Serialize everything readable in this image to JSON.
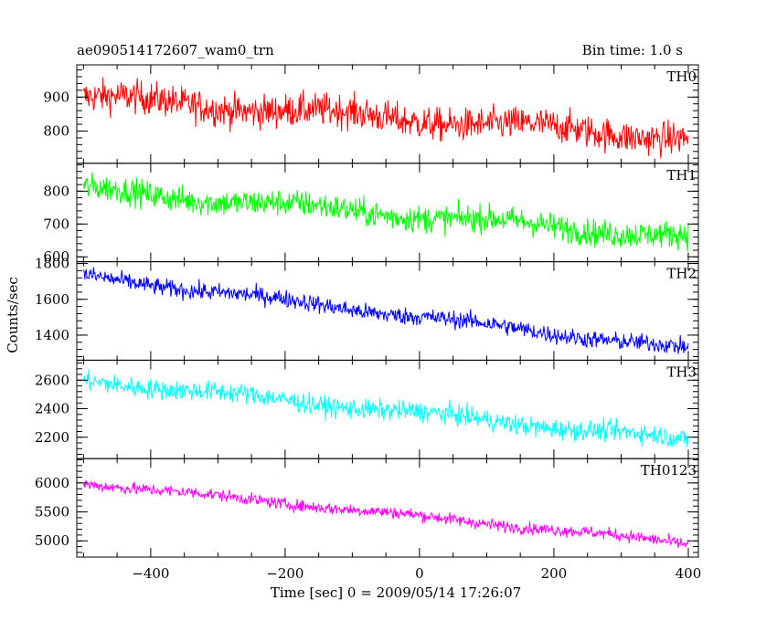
{
  "chart_data": {
    "type": "line",
    "title_left": "ae090514172607_wam0_trn",
    "title_right": "Bin time: 1.0 s",
    "xlabel": "Time [sec] 0 = 2009/05/14 17:26:07",
    "ylabel": "Counts/sec",
    "xlim": [
      -510,
      415
    ],
    "x_ticks": [
      -400,
      -200,
      0,
      200,
      400
    ],
    "x_tick_labels": [
      "−400",
      "−200",
      "0",
      "200",
      "400"
    ],
    "x_start": -500,
    "x_end": 400,
    "grid": false,
    "panels": [
      {
        "name": "TH0",
        "color": "#ff0000",
        "ylim": [
          705,
          995
        ],
        "ticks": [
          800,
          900
        ],
        "tick_labels": [
          "800",
          "900"
        ],
        "start": 900,
        "end": 780,
        "noise": 45
      },
      {
        "name": "TH1",
        "color": "#00ff00",
        "ylim": [
          585,
          885
        ],
        "ticks": [
          600,
          700,
          800
        ],
        "tick_labels": [
          "600",
          "700",
          "800"
        ],
        "start": 805,
        "end": 660,
        "noise": 38
      },
      {
        "name": "TH2",
        "color": "#0000ff",
        "ylim": [
          1260,
          1810
        ],
        "ticks": [
          1400,
          1600,
          1800
        ],
        "tick_labels": [
          "1400",
          "1600",
          "1800"
        ],
        "start": 1730,
        "end": 1320,
        "noise": 45
      },
      {
        "name": "TH3",
        "color": "#00ffff",
        "ylim": [
          2050,
          2740
        ],
        "ticks": [
          2200,
          2400,
          2600
        ],
        "tick_labels": [
          "2200",
          "2400",
          "2600"
        ],
        "start": 2600,
        "end": 2180,
        "noise": 65
      },
      {
        "name": "TH0123",
        "color": "#ff00ff",
        "ylim": [
          4720,
          6420
        ],
        "ticks": [
          5000,
          5500,
          6000
        ],
        "tick_labels": [
          "5000",
          "5500",
          "6000"
        ],
        "start": 6000,
        "end": 4960,
        "noise": 95
      }
    ]
  }
}
